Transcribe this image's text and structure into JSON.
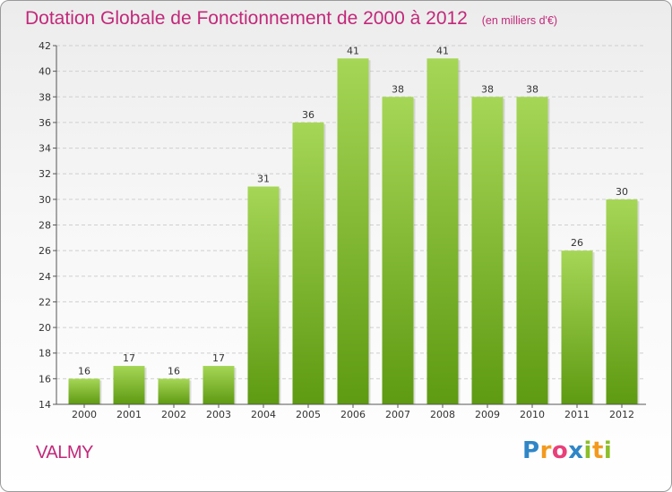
{
  "header": {
    "title": "Dotation Globale de Fonctionnement de 2000 à 2012",
    "subtitle": "(en milliers d'€)"
  },
  "footer": {
    "commune": "VALMY",
    "logo_letters": [
      "P",
      "r",
      "o",
      "x",
      "i",
      "t",
      "i"
    ]
  },
  "chart_data": {
    "type": "bar",
    "title": "Dotation Globale de Fonctionnement de 2000 à 2012",
    "subtitle": "(en milliers d'€)",
    "categories": [
      "2000",
      "2001",
      "2002",
      "2003",
      "2004",
      "2005",
      "2006",
      "2007",
      "2008",
      "2009",
      "2010",
      "2011",
      "2012"
    ],
    "values": [
      16,
      17,
      16,
      17,
      31,
      36,
      41,
      38,
      41,
      38,
      38,
      26,
      30
    ],
    "xlabel": "",
    "ylabel": "",
    "ylim": [
      14,
      42
    ],
    "yticks": [
      14,
      16,
      18,
      20,
      22,
      24,
      26,
      28,
      30,
      32,
      34,
      36,
      38,
      40,
      42
    ],
    "grid": true,
    "colors": {
      "bar_top": "#a6d656",
      "bar_bottom": "#5e9a12",
      "axis": "#555555",
      "grid": "#cfcfcf",
      "title": "#c2287a"
    }
  }
}
